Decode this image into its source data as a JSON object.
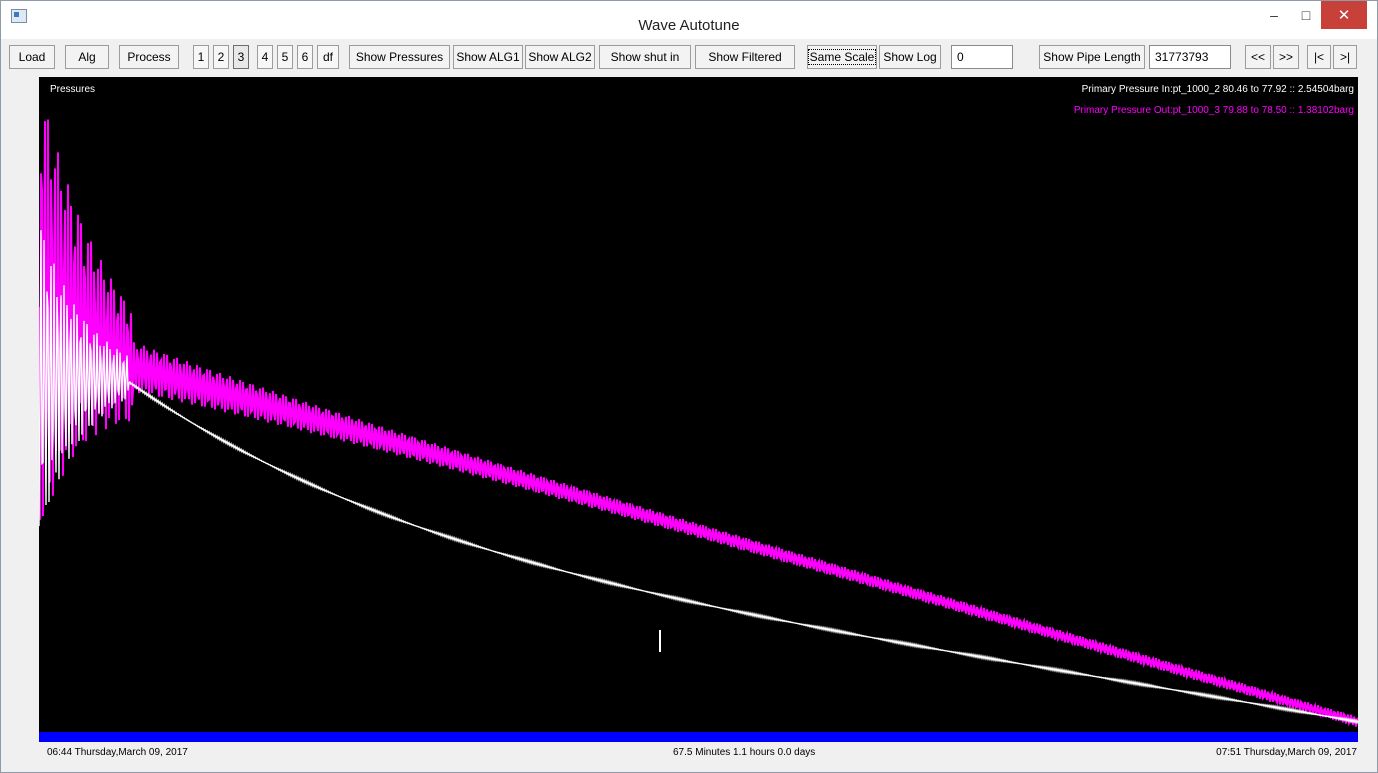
{
  "window": {
    "title": "Wave Autotune"
  },
  "titlebar": {
    "minimize": "–",
    "maximize": "□",
    "close": "✕",
    "app_icon": "app-window-icon"
  },
  "toolbar": {
    "load": "Load",
    "alg": "Alg",
    "process": "Process",
    "pages": [
      "1",
      "2",
      "3",
      "4",
      "5",
      "6",
      "df"
    ],
    "show_pressures": "Show Pressures",
    "show_alg1": "Show ALG1",
    "show_alg2": "Show ALG2",
    "show_shut_in": "Show shut in",
    "show_filtered": "Show Filtered",
    "same_scale": "Same Scale",
    "show_log": "Show Log",
    "value_input": "0",
    "show_pipe_length": "Show Pipe Length",
    "pipe_length_value": "31773793",
    "nav_prev": "<<",
    "nav_next": ">>",
    "nav_first": "|<",
    "nav_last": ">|"
  },
  "plot": {
    "title": "Pressures",
    "legend": [
      {
        "text": "Primary Pressure In:pt_1000_2 80.46 to 77.92 :: 2.54504barg",
        "color": "#ffffff"
      },
      {
        "text": "Primary Pressure Out:pt_1000_3 79.88 to 78.50 :: 1.38102barg",
        "color": "#ff00ff"
      }
    ],
    "background": "#000000",
    "timebar_color": "#0000ff"
  },
  "footer": {
    "start_time": "06:44 Thursday,March 09, 2017",
    "duration": "67.5 Minutes   1.1 hours   0.0 days",
    "end_time": "07:51 Thursday,March 09, 2017"
  }
}
